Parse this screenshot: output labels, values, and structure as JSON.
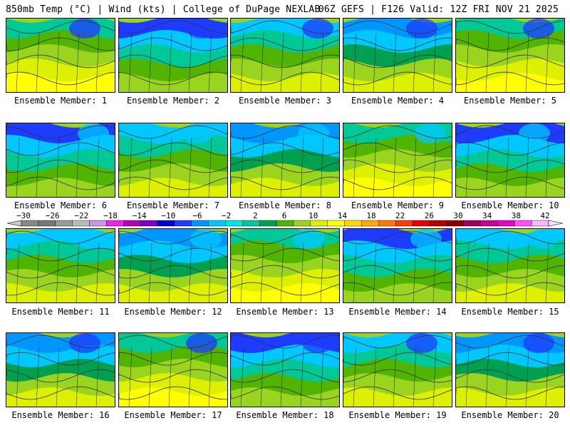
{
  "header": {
    "left": "850mb Temp (°C) | Wind (kts) | College of DuPage NEXLAB",
    "right": "06Z GEFS | F126 Valid: 12Z FRI NOV 21 2025"
  },
  "colorbar": {
    "tick_labels": [
      "−30",
      "−26",
      "−22",
      "−18",
      "−14",
      "−10",
      "−6",
      "−2",
      "2",
      "6",
      "10",
      "14",
      "18",
      "22",
      "26",
      "30",
      "34",
      "38",
      "42"
    ],
    "colors": [
      "#888888",
      "#777777",
      "#9a9a9a",
      "#bbbbbb",
      "#c896e6",
      "#ee22ee",
      "#b400b4",
      "#7a00c8",
      "#0000cc",
      "#1e3cff",
      "#0096ff",
      "#00c8ff",
      "#00e6e6",
      "#00c896",
      "#00a050",
      "#50b400",
      "#9bd41e",
      "#dcf000",
      "#ffff00",
      "#ffd700",
      "#ffaa00",
      "#ff7800",
      "#ff3c00",
      "#e60000",
      "#b40000",
      "#8c0000",
      "#a00064",
      "#c80096",
      "#e600c8",
      "#ff50ff",
      "#ffb4ff"
    ]
  },
  "panels": [
    {
      "label": "Ensemble Member: 1"
    },
    {
      "label": "Ensemble Member: 2"
    },
    {
      "label": "Ensemble Member: 3"
    },
    {
      "label": "Ensemble Member: 4"
    },
    {
      "label": "Ensemble Member: 5"
    },
    {
      "label": "Ensemble Member: 6"
    },
    {
      "label": "Ensemble Member: 7"
    },
    {
      "label": "Ensemble Member: 8"
    },
    {
      "label": "Ensemble Member: 9"
    },
    {
      "label": "Ensemble Member: 10"
    },
    {
      "label": "Ensemble Member: 11"
    },
    {
      "label": "Ensemble Member: 12"
    },
    {
      "label": "Ensemble Member: 13"
    },
    {
      "label": "Ensemble Member: 14"
    },
    {
      "label": "Ensemble Member: 15"
    },
    {
      "label": "Ensemble Member: 16"
    },
    {
      "label": "Ensemble Member: 17"
    },
    {
      "label": "Ensemble Member: 18"
    },
    {
      "label": "Ensemble Member: 19"
    },
    {
      "label": "Ensemble Member: 20"
    }
  ]
}
